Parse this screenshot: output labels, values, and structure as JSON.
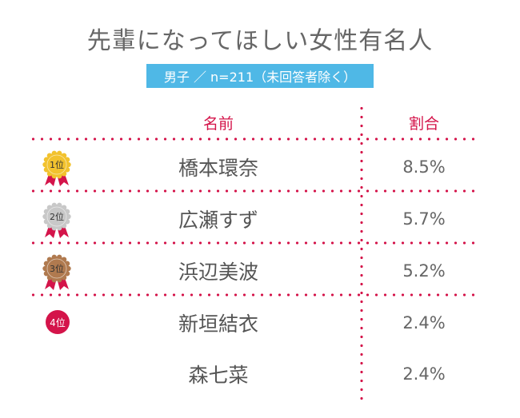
{
  "title": "先輩になってほしい女性有名人",
  "subtitle": "男子 ／ n=211（未回答者除く）",
  "columns": {
    "name": "名前",
    "ratio": "割合"
  },
  "colors": {
    "accent": "#d4144a",
    "subtitle_bg": "#4fb8e6",
    "gold": "#f2c22e",
    "silver": "#c8c8c8",
    "bronze": "#b07a4f"
  },
  "chart_data": {
    "type": "table",
    "columns": [
      "名前",
      "割合"
    ],
    "rows": [
      {
        "rank": "1位",
        "name": "橋本環奈",
        "value": "8.5%",
        "medal": "gold"
      },
      {
        "rank": "2位",
        "name": "広瀬すず",
        "value": "5.7%",
        "medal": "silver"
      },
      {
        "rank": "3位",
        "name": "浜辺美波",
        "value": "5.2%",
        "medal": "bronze"
      },
      {
        "rank": "4位",
        "name": "新垣結衣",
        "value": "2.4%",
        "medal": "badge"
      },
      {
        "rank": "",
        "name": "森七菜",
        "value": "2.4%",
        "medal": "none"
      }
    ],
    "values_percent": [
      8.5,
      5.7,
      5.2,
      2.4,
      2.4
    ]
  }
}
